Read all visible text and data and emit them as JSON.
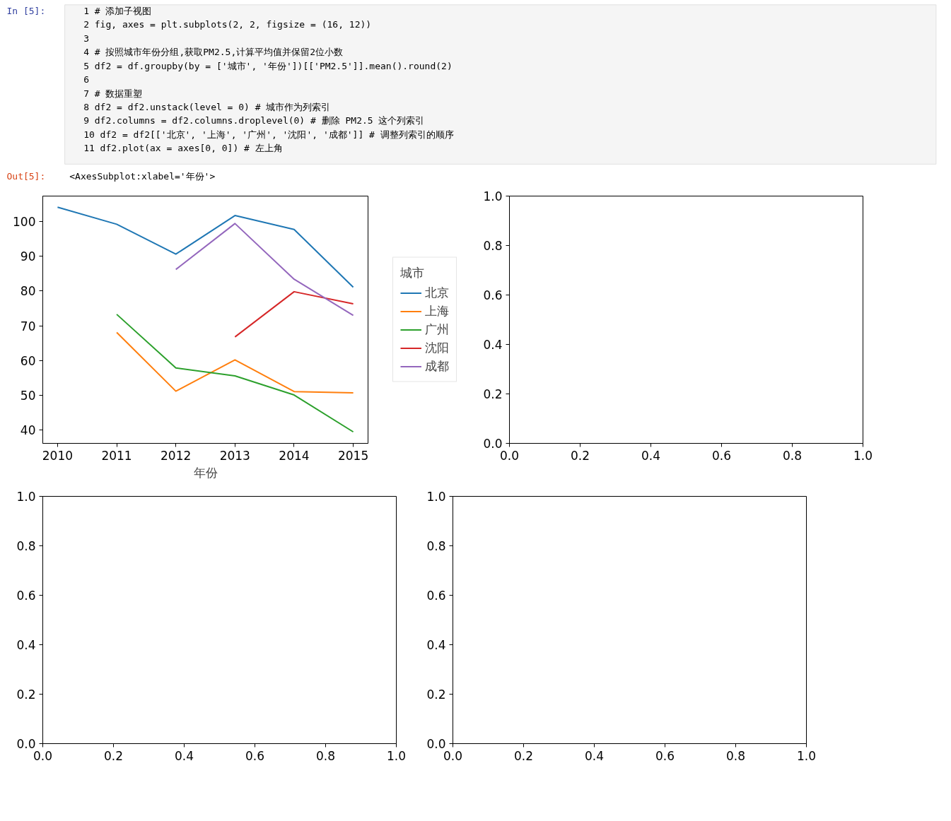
{
  "chart_data": [
    {
      "type": "other",
      "annotations": [
        "In [5]:",
        "1  # 添加子视图",
        "2  fig, axes = plt.subplots(2, 2, figsize = (16, 12))",
        "3",
        "4  # 按照城市年份分组,获取PM2.5,计算平均值并保留2位小数",
        "5  df2 = df.groupby(by = ['城市', '年份'])[['PM2.5']].mean().round(2)",
        "6",
        "7  # 数据重塑",
        "8  df2 = df2.unstack(level = 0)    # 城市作为列索引",
        "9  df2.columns = df2.columns.droplevel(0)  # 删除 PM2.5 这个列索引",
        "10 df2 = df2[['北京', '上海', '广州', '沈阳', '成都']]   # 调整列索引的顺序",
        "11 df2.plot(ax = axes[0, 0])    # 左上角",
        "Out[5]:",
        "<AxesSubplot:xlabel='年份'>"
      ]
    },
    {
      "type": "line",
      "xlabel": "年份",
      "legend_title": "城市",
      "legend": "right",
      "grid": false,
      "x": [
        2010,
        2011,
        2012,
        2013,
        2014,
        2015
      ],
      "xlim": [
        2009.75,
        2015.25
      ],
      "xticks": [
        2010,
        2011,
        2012,
        2013,
        2014,
        2015
      ],
      "ylim": [
        36.2,
        107.3
      ],
      "yticks": [
        40,
        50,
        60,
        70,
        80,
        90,
        100
      ],
      "series": [
        {
          "name": "北京",
          "color": "#1f77b4",
          "values": [
            104.1,
            99.2,
            90.6,
            101.7,
            97.7,
            81.1
          ]
        },
        {
          "name": "上海",
          "color": "#ff7f0e",
          "values": [
            null,
            68.1,
            51.2,
            60.2,
            51.1,
            50.7
          ]
        },
        {
          "name": "广州",
          "color": "#2ca02c",
          "values": [
            null,
            73.3,
            57.9,
            55.6,
            50.1,
            39.5
          ]
        },
        {
          "name": "沈阳",
          "color": "#d62728",
          "values": [
            null,
            null,
            null,
            66.8,
            79.8,
            76.3
          ]
        },
        {
          "name": "成都",
          "color": "#9467bd",
          "values": [
            null,
            null,
            86.2,
            99.4,
            83.4,
            73.0
          ]
        }
      ]
    },
    {
      "type": "line",
      "xlim": [
        0,
        1
      ],
      "ylim": [
        0,
        1
      ],
      "xticks": [
        {
          "value": 0,
          "label": "0.0"
        },
        {
          "value": 0.2,
          "label": "0.2"
        },
        {
          "value": 0.4,
          "label": "0.4"
        },
        {
          "value": 0.6,
          "label": "0.6"
        },
        {
          "value": 0.8,
          "label": "0.8"
        },
        {
          "value": 1,
          "label": "1.0"
        }
      ],
      "yticks": [
        {
          "value": 0,
          "label": "0.0"
        },
        {
          "value": 0.2,
          "label": "0.2"
        },
        {
          "value": 0.4,
          "label": "0.4"
        },
        {
          "value": 0.6,
          "label": "0.6"
        },
        {
          "value": 0.8,
          "label": "0.8"
        },
        {
          "value": 1,
          "label": "1.0"
        }
      ]
    },
    {
      "type": "line",
      "xlim": [
        0,
        1
      ],
      "ylim": [
        0,
        1
      ],
      "xticks": [
        {
          "value": 0,
          "label": "0.0"
        },
        {
          "value": 0.2,
          "label": "0.2"
        },
        {
          "value": 0.4,
          "label": "0.4"
        },
        {
          "value": 0.6,
          "label": "0.6"
        },
        {
          "value": 0.8,
          "label": "0.8"
        },
        {
          "value": 1,
          "label": "1.0"
        }
      ],
      "yticks": [
        {
          "value": 0,
          "label": "0.0"
        },
        {
          "value": 0.2,
          "label": "0.2"
        },
        {
          "value": 0.4,
          "label": "0.4"
        },
        {
          "value": 0.6,
          "label": "0.6"
        },
        {
          "value": 0.8,
          "label": "0.8"
        },
        {
          "value": 1,
          "label": "1.0"
        }
      ]
    },
    {
      "type": "line",
      "xlim": [
        0,
        1
      ],
      "ylim": [
        0,
        1
      ],
      "xticks": [
        {
          "value": 0,
          "label": "0.0"
        },
        {
          "value": 0.2,
          "label": "0.2"
        },
        {
          "value": 0.4,
          "label": "0.4"
        },
        {
          "value": 0.6,
          "label": "0.6"
        },
        {
          "value": 0.8,
          "label": "0.8"
        },
        {
          "value": 1,
          "label": "1.0"
        }
      ],
      "yticks": [
        {
          "value": 0,
          "label": "0.0"
        },
        {
          "value": 0.2,
          "label": "0.2"
        },
        {
          "value": 0.4,
          "label": "0.4"
        },
        {
          "value": 0.6,
          "label": "0.6"
        },
        {
          "value": 0.8,
          "label": "0.8"
        },
        {
          "value": 1,
          "label": "1.0"
        }
      ]
    }
  ]
}
